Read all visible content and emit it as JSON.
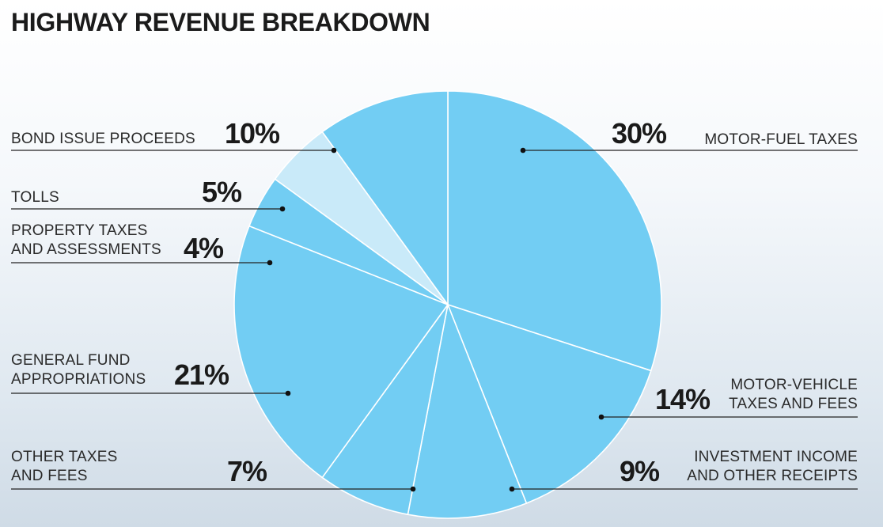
{
  "chart_data": {
    "type": "pie",
    "title": "HIGHWAY REVENUE BREAKDOWN",
    "slices": [
      {
        "name": "MOTOR-FUEL TAXES",
        "label_lines": [
          "MOTOR-FUEL TAXES"
        ],
        "value": 30,
        "pct_label": "30%",
        "color": "#72cdf3"
      },
      {
        "name": "MOTOR-VEHICLE TAXES AND FEES",
        "label_lines": [
          "MOTOR-VEHICLE",
          "TAXES AND FEES"
        ],
        "value": 14,
        "pct_label": "14%",
        "color": "#72cdf3"
      },
      {
        "name": "INVESTMENT INCOME AND OTHER RECEIPTS",
        "label_lines": [
          "INVESTMENT INCOME",
          "AND OTHER RECEIPTS"
        ],
        "value": 9,
        "pct_label": "9%",
        "color": "#72cdf3"
      },
      {
        "name": "OTHER TAXES AND FEES",
        "label_lines": [
          "OTHER TAXES",
          "AND FEES"
        ],
        "value": 7,
        "pct_label": "7%",
        "color": "#72cdf3"
      },
      {
        "name": "GENERAL FUND APPROPRIATIONS",
        "label_lines": [
          "GENERAL FUND",
          "APPROPRIATIONS"
        ],
        "value": 21,
        "pct_label": "21%",
        "color": "#72cdf3"
      },
      {
        "name": "PROPERTY TAXES AND ASSESSMENTS",
        "label_lines": [
          "PROPERTY TAXES",
          "AND ASSESSMENTS"
        ],
        "value": 4,
        "pct_label": "4%",
        "color": "#72cdf3"
      },
      {
        "name": "TOLLS",
        "label_lines": [
          "TOLLS"
        ],
        "value": 5,
        "pct_label": "5%",
        "color": "#c9eaf9"
      },
      {
        "name": "BOND ISSUE PROCEEDS",
        "label_lines": [
          "BOND ISSUE PROCEEDS"
        ],
        "value": 10,
        "pct_label": "10%",
        "color": "#72cdf3"
      }
    ],
    "start": "12 o'clock",
    "direction": "clockwise",
    "legend": "none"
  }
}
